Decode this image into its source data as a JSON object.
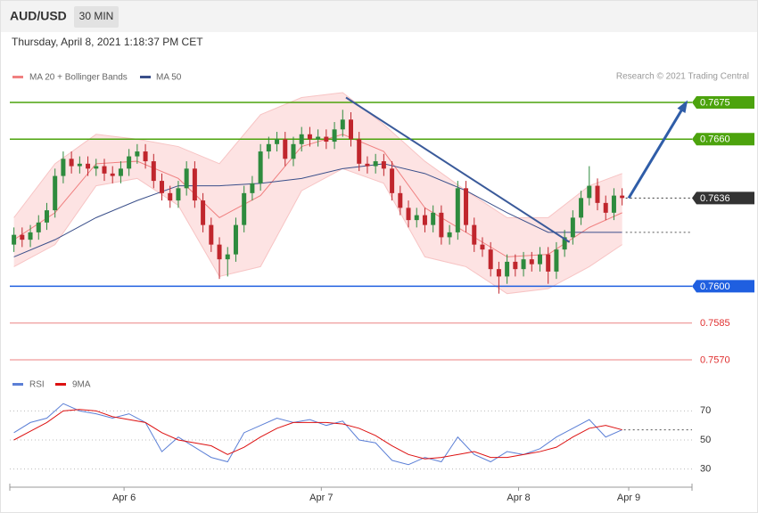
{
  "chart_data": [
    {
      "type": "candlestick",
      "title": "AUD/USD",
      "timeframe": "30 MIN",
      "subtitle": "Thursday, April 8, 2021 1:18:37 PM CET",
      "credit": "Research © 2021 Trading Central",
      "up_color": "#2e8b3e",
      "down_color": "#c0262d",
      "x": [
        0,
        1,
        2,
        3,
        4,
        5,
        6,
        7,
        8,
        9,
        10,
        11,
        12,
        13,
        14,
        15,
        16,
        17,
        18,
        19,
        20,
        21,
        22,
        23,
        24,
        25,
        26,
        27,
        28,
        29,
        30,
        31,
        32,
        33,
        34,
        35,
        36,
        37,
        38,
        39,
        40,
        41,
        42,
        43,
        44,
        45,
        46,
        47,
        48,
        49,
        50,
        51,
        52,
        53,
        54,
        55,
        56,
        57,
        58,
        59,
        60,
        61,
        62,
        63,
        64,
        65,
        66,
        67,
        68,
        69,
        70,
        71,
        72,
        73,
        74
      ],
      "open": [
        0.7617,
        0.7621,
        0.7619,
        0.7622,
        0.7626,
        0.7631,
        0.7645,
        0.7652,
        0.7649,
        0.765,
        0.7648,
        0.7649,
        0.7646,
        0.7645,
        0.7648,
        0.7653,
        0.7655,
        0.7651,
        0.7643,
        0.7638,
        0.7635,
        0.764,
        0.7648,
        0.7635,
        0.7625,
        0.7617,
        0.7611,
        0.7613,
        0.7625,
        0.7638,
        0.7642,
        0.7655,
        0.7658,
        0.766,
        0.7652,
        0.7658,
        0.7662,
        0.766,
        0.7661,
        0.7659,
        0.7664,
        0.7668,
        0.766,
        0.765,
        0.7649,
        0.7651,
        0.7648,
        0.7638,
        0.7632,
        0.7627,
        0.7629,
        0.7625,
        0.763,
        0.762,
        0.7622,
        0.764,
        0.7625,
        0.7617,
        0.7615,
        0.7607,
        0.7604,
        0.761,
        0.7607,
        0.7611,
        0.7609,
        0.7613,
        0.7606,
        0.7615,
        0.762,
        0.7628,
        0.7636,
        0.7641,
        0.7634,
        0.763,
        0.7637
      ],
      "high": [
        0.7624,
        0.7624,
        0.7625,
        0.7629,
        0.7634,
        0.7648,
        0.7655,
        0.7655,
        0.7653,
        0.7653,
        0.7652,
        0.7652,
        0.7649,
        0.7651,
        0.7656,
        0.7658,
        0.7658,
        0.7654,
        0.7646,
        0.7641,
        0.7643,
        0.7651,
        0.7651,
        0.7638,
        0.7628,
        0.762,
        0.7616,
        0.7628,
        0.7641,
        0.7645,
        0.7658,
        0.7661,
        0.7663,
        0.7663,
        0.7661,
        0.7665,
        0.7665,
        0.7664,
        0.7664,
        0.7667,
        0.7672,
        0.7671,
        0.7663,
        0.7653,
        0.7654,
        0.7654,
        0.7651,
        0.7641,
        0.7635,
        0.7632,
        0.7632,
        0.7633,
        0.7633,
        0.7625,
        0.7643,
        0.7643,
        0.7628,
        0.762,
        0.7618,
        0.761,
        0.7613,
        0.7613,
        0.7614,
        0.7614,
        0.7616,
        0.7616,
        0.7618,
        0.7623,
        0.7631,
        0.7639,
        0.7649,
        0.7644,
        0.7637,
        0.764,
        0.764
      ],
      "low": [
        0.7614,
        0.7616,
        0.7616,
        0.7619,
        0.7623,
        0.7628,
        0.7642,
        0.7646,
        0.7646,
        0.7645,
        0.7645,
        0.7643,
        0.7642,
        0.7642,
        0.7645,
        0.765,
        0.7648,
        0.764,
        0.7635,
        0.7632,
        0.7632,
        0.7637,
        0.7632,
        0.7622,
        0.7614,
        0.7603,
        0.7604,
        0.761,
        0.7622,
        0.7635,
        0.7639,
        0.7652,
        0.7655,
        0.7649,
        0.7649,
        0.7655,
        0.7657,
        0.7657,
        0.7656,
        0.7656,
        0.7661,
        0.7657,
        0.7647,
        0.7646,
        0.7646,
        0.7645,
        0.7635,
        0.7629,
        0.7624,
        0.7624,
        0.7622,
        0.7622,
        0.7617,
        0.7617,
        0.7619,
        0.7622,
        0.7614,
        0.7612,
        0.7604,
        0.7597,
        0.7601,
        0.7604,
        0.7604,
        0.7606,
        0.7606,
        0.7601,
        0.7603,
        0.7612,
        0.7617,
        0.7625,
        0.7633,
        0.7631,
        0.7627,
        0.7627,
        0.7633
      ],
      "close": [
        0.7621,
        0.7619,
        0.7622,
        0.7626,
        0.7631,
        0.7645,
        0.7652,
        0.7649,
        0.765,
        0.7648,
        0.7649,
        0.7646,
        0.7645,
        0.7648,
        0.7653,
        0.7655,
        0.7651,
        0.7643,
        0.7638,
        0.7635,
        0.764,
        0.7648,
        0.7635,
        0.7625,
        0.7617,
        0.7611,
        0.7613,
        0.7625,
        0.7638,
        0.7642,
        0.7655,
        0.7658,
        0.766,
        0.7652,
        0.7658,
        0.7662,
        0.766,
        0.7661,
        0.7659,
        0.7664,
        0.7668,
        0.766,
        0.765,
        0.7649,
        0.7651,
        0.7648,
        0.7638,
        0.7632,
        0.7627,
        0.7629,
        0.7625,
        0.763,
        0.762,
        0.7622,
        0.764,
        0.7625,
        0.7617,
        0.7615,
        0.7607,
        0.7604,
        0.761,
        0.7607,
        0.7611,
        0.7609,
        0.7613,
        0.7606,
        0.7615,
        0.762,
        0.7628,
        0.7636,
        0.7641,
        0.7634,
        0.763,
        0.7637,
        0.7636
      ],
      "bands": {
        "name": "MA 20 + Bollinger Bands",
        "color": "#f08080",
        "fill": "#fde3e3",
        "x": [
          0,
          5,
          10,
          15,
          20,
          25,
          30,
          35,
          40,
          45,
          50,
          55,
          60,
          65,
          70,
          74
        ],
        "upper": [
          0.7628,
          0.765,
          0.7662,
          0.766,
          0.7657,
          0.765,
          0.767,
          0.7677,
          0.7679,
          0.7666,
          0.7651,
          0.7639,
          0.7628,
          0.7628,
          0.7641,
          0.7646
        ],
        "middle": [
          0.7619,
          0.763,
          0.765,
          0.7651,
          0.7644,
          0.7628,
          0.7637,
          0.7657,
          0.7662,
          0.7655,
          0.7632,
          0.7622,
          0.7612,
          0.7613,
          0.7624,
          0.763
        ],
        "lower": [
          0.7608,
          0.7617,
          0.7641,
          0.7644,
          0.7633,
          0.7604,
          0.7608,
          0.7639,
          0.7648,
          0.7642,
          0.7612,
          0.7608,
          0.7597,
          0.7599,
          0.7608,
          0.7617
        ]
      },
      "ma50": {
        "name": "MA 50",
        "color": "#3a4f8a",
        "values": [
          0.7612,
          0.7619,
          0.7628,
          0.7635,
          0.7641,
          0.7641,
          0.7642,
          0.7644,
          0.7648,
          0.765,
          0.7646,
          0.7639,
          0.763,
          0.7622,
          0.7622,
          0.7622
        ]
      },
      "levels": [
        {
          "value": 0.7675,
          "color": "#4ca30d",
          "box": true
        },
        {
          "value": 0.766,
          "label": "0.7660",
          "color": "#4ca30d",
          "box": true
        },
        {
          "value": 0.7636,
          "color": "#333333",
          "box": true,
          "dotted": true
        },
        {
          "value": 0.7622,
          "color": "#555555",
          "dotted": true
        },
        {
          "value": 0.76,
          "label": "0.7600",
          "color": "#1f5fe0",
          "box": true
        },
        {
          "value": 0.7585,
          "color": "#e03030"
        },
        {
          "value": 0.757,
          "label": "0.7570",
          "color": "#e03030"
        }
      ],
      "trend_line": {
        "x": [
          40.4,
          67.6
        ],
        "y": [
          0.7677,
          0.7618
        ],
        "color": "#3a5a9a"
      },
      "arrow": {
        "x": [
          74.8,
          81.8
        ],
        "y": [
          0.7636,
          0.7675
        ],
        "color": "#2f5da8"
      },
      "xlim": [
        -0.5,
        82.5
      ],
      "xticks": [
        {
          "value": 13.4,
          "label": "Apr 6"
        },
        {
          "value": 37.4,
          "label": "Apr 7"
        },
        {
          "value": 61.4,
          "label": "Apr 8"
        },
        {
          "value": 74.8,
          "label": "Apr 9"
        }
      ],
      "ylim": [
        0.7566,
        0.7683
      ]
    },
    {
      "type": "line",
      "x": [
        0,
        2,
        4,
        6,
        8,
        10,
        12,
        14,
        16,
        18,
        20,
        22,
        24,
        26,
        28,
        30,
        32,
        34,
        36,
        38,
        40,
        42,
        44,
        46,
        48,
        50,
        52,
        54,
        56,
        58,
        60,
        62,
        64,
        66,
        68,
        70,
        72,
        74
      ],
      "series": [
        {
          "name": "RSI",
          "color": "#5b7fd6",
          "values": [
            55,
            62,
            65,
            75,
            70,
            68,
            65,
            68,
            62,
            42,
            52,
            45,
            38,
            35,
            55,
            60,
            65,
            62,
            64,
            60,
            63,
            50,
            48,
            36,
            33,
            38,
            35,
            52,
            40,
            35,
            42,
            40,
            44,
            52,
            58,
            64,
            52,
            57
          ]
        },
        {
          "name": "9MA",
          "color": "#dd1111",
          "values": [
            50,
            56,
            62,
            70,
            71,
            70,
            66,
            64,
            62,
            55,
            50,
            48,
            46,
            40,
            45,
            52,
            58,
            62,
            62,
            62,
            61,
            58,
            53,
            46,
            40,
            37,
            38,
            40,
            42,
            38,
            38,
            40,
            42,
            45,
            52,
            58,
            60,
            57
          ]
        }
      ],
      "level": 57,
      "xlim": [
        -0.5,
        82.5
      ],
      "ylim": [
        20,
        80
      ],
      "yticks": [
        30,
        50,
        70
      ],
      "grid": true
    }
  ]
}
